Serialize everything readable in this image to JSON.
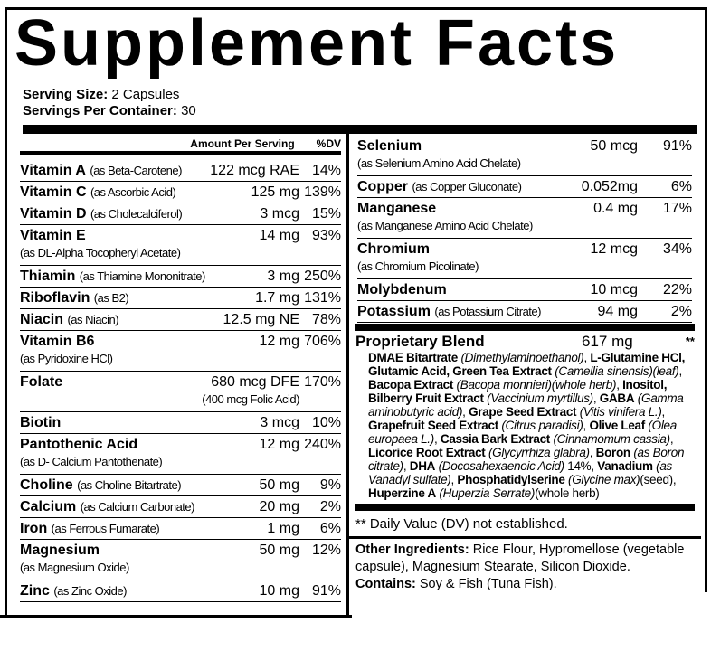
{
  "title": "Supplement Facts",
  "serving_size_label": "Serving Size:",
  "serving_size": "2 Capsules",
  "servings_per_container_label": "Servings Per Container:",
  "servings_per_container": "30",
  "header": {
    "amount": "Amount Per Serving",
    "dv": "%DV"
  },
  "left_items": [
    {
      "name": "Vitamin A",
      "source": "(as Beta-Carotene)",
      "amount": "122 mcg RAE",
      "dv": "14%"
    },
    {
      "name": "Vitamin C",
      "source": "(as Ascorbic Acid)",
      "amount": "125 mg",
      "dv": "139%"
    },
    {
      "name": "Vitamin D",
      "source": "(as Cholecalciferol)",
      "amount": "3 mcg",
      "dv": "15%"
    },
    {
      "name": "Vitamin E",
      "source": "(as DL-Alpha Tocopheryl Acetate)",
      "amount": "14 mg",
      "dv": "93%"
    },
    {
      "name": "Thiamin",
      "source": "(as Thiamine Mononitrate)",
      "amount": "3 mg",
      "dv": "250%"
    },
    {
      "name": "Riboflavin",
      "source": "(as B2)",
      "amount": "1.7 mg",
      "dv": "131%"
    },
    {
      "name": "Niacin",
      "source": "(as Niacin)",
      "amount": "12.5 mg NE",
      "dv": "78%"
    },
    {
      "name": "Vitamin B6",
      "source": "(as Pyridoxine HCl)",
      "amount": "12 mg",
      "dv": "706%"
    },
    {
      "name": "Folate",
      "source": "",
      "amount": "680 mcg DFE",
      "amount_note": "(400 mcg Folic Acid)",
      "dv": "170%"
    },
    {
      "name": "Biotin",
      "source": "",
      "amount": "3 mcg",
      "dv": "10%"
    },
    {
      "name": "Pantothenic Acid",
      "source": "(as D- Calcium Pantothenate)",
      "amount": "12 mg",
      "dv": "240%"
    },
    {
      "name": "Choline",
      "source": "(as Choline Bitartrate)",
      "amount": "50 mg",
      "dv": "9%"
    },
    {
      "name": "Calcium",
      "source": "(as Calcium Carbonate)",
      "amount": "20 mg",
      "dv": "2%"
    },
    {
      "name": "Iron",
      "source": "(as Ferrous Fumarate)",
      "amount": "1 mg",
      "dv": "6%"
    },
    {
      "name": "Magnesium",
      "source": "(as Magnesium Oxide)",
      "amount": "50 mg",
      "dv": "12%"
    },
    {
      "name": "Zinc",
      "source": "(as Zinc Oxide)",
      "amount": "10 mg",
      "dv": "91%"
    }
  ],
  "right_items": [
    {
      "name": "Selenium",
      "source": "(as Selenium Amino Acid Chelate)",
      "amount": "50 mcg",
      "dv": "91%"
    },
    {
      "name": "Copper",
      "source": "(as Copper Gluconate)",
      "amount": "0.052mg",
      "dv": "6%"
    },
    {
      "name": "Manganese",
      "source": "(as Manganese Amino Acid Chelate)",
      "amount": "0.4 mg",
      "dv": "17%"
    },
    {
      "name": "Chromium",
      "source": "(as Chromium Picolinate)",
      "amount": "12 mcg",
      "dv": "34%"
    },
    {
      "name": "Molybdenum",
      "source": "",
      "amount": "10 mcg",
      "dv": "22%"
    },
    {
      "name": "Potassium",
      "source": "(as Potassium Citrate)",
      "amount": "94 mg",
      "dv": "2%"
    }
  ],
  "blend": {
    "name": "Proprietary Blend",
    "amount": "617 mg",
    "dv": "**",
    "ingredients": [
      [
        "DMAE Bitartrate",
        "(Dimethylaminoethanol)",
        ","
      ],
      [
        "L-Glutamine HCl, Glutamic Acid, Green Tea Extract",
        "(Camellia sinensis)(leaf)",
        ","
      ],
      [
        "Bacopa Extract",
        "(Bacopa monnieri)(whole herb)",
        ","
      ],
      [
        "Inositol, Bilberry Fruit Extract",
        "(Vaccinium myrtillus)",
        ","
      ],
      [
        "GABA",
        "(Gamma aminobutyric acid)",
        ","
      ],
      [
        "Grape Seed Extract",
        "(Vitis vinifera L.)",
        ","
      ],
      [
        "Grapefruit Seed Extract",
        "(Citrus paradisi)",
        ","
      ],
      [
        "Olive Leaf",
        "(Olea europaea L.)",
        ","
      ],
      [
        "Cassia Bark Extract",
        "(Cinnamomum cassia)",
        ","
      ],
      [
        "Licorice Root Extract",
        "(Glycyrrhiza glabra)",
        ","
      ],
      [
        "Boron",
        "(as Boron citrate)",
        ","
      ],
      [
        "DHA",
        "(Docosahexaenoic Acid)",
        " 14%,"
      ],
      [
        "Vanadium",
        "(as Vanadyl sulfate)",
        ","
      ],
      [
        "Phosphatidylserine",
        "(Glycine max)",
        "(seed),"
      ],
      [
        "Huperzine A",
        "(Huperzia Serrate)",
        "(whole herb)"
      ]
    ]
  },
  "footnote": "** Daily Value (DV) not established.",
  "other_ingredients_label": "Other Ingredients:",
  "other_ingredients": "Rice Flour, Hypromellose (vegetable capsule), Magnesium Stearate, Silicon Dioxide.",
  "contains_label": "Contains:",
  "contains": "Soy & Fish (Tuna Fish)."
}
